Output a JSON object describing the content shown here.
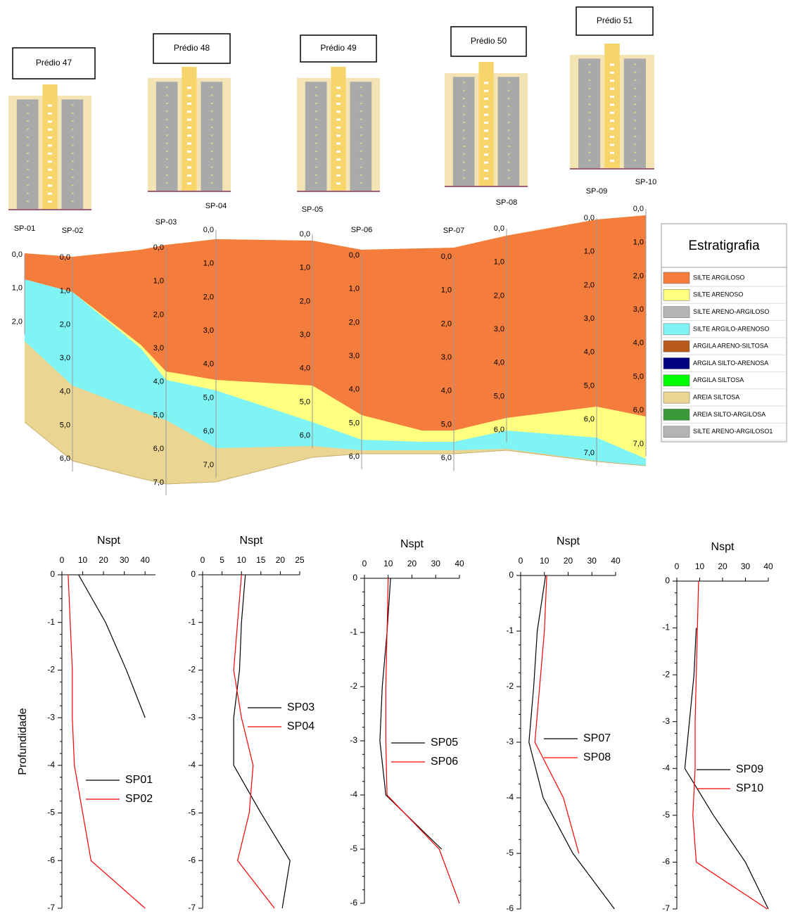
{
  "section": {
    "buildings": [
      "Prédio 47",
      "Prédio 48",
      "Prédio 49",
      "Prédio 50",
      "Prédio 51"
    ],
    "boreholes": [
      {
        "name": "SP-01",
        "depths": [
          "0,0",
          "1,0",
          "2,0"
        ]
      },
      {
        "name": "SP-02",
        "depths": [
          "0,0",
          "1,0",
          "2,0",
          "3,0",
          "4,0",
          "5,0",
          "6,0"
        ]
      },
      {
        "name": "SP-03",
        "depths": [
          "0,0",
          "1,0",
          "2,0",
          "3,0",
          "4,0",
          "5,0",
          "6,0",
          "7,0"
        ]
      },
      {
        "name": "SP-04",
        "depths": [
          "0,0",
          "1,0",
          "2,0",
          "3,0",
          "4,0",
          "5,0",
          "6,0",
          "7,0"
        ]
      },
      {
        "name": "SP-05",
        "depths": [
          "0,0",
          "1,0",
          "2,0",
          "3,0",
          "4,0",
          "5,0",
          "6,0"
        ]
      },
      {
        "name": "SP-06",
        "depths": [
          "0,0",
          "1,0",
          "2,0",
          "3,0",
          "4,0",
          "5,0",
          "6,0"
        ]
      },
      {
        "name": "SP-07",
        "depths": [
          "0,0",
          "1,0",
          "2,0",
          "3,0",
          "4,0",
          "5,0",
          "6,0"
        ]
      },
      {
        "name": "SP-08",
        "depths": [
          "0,0",
          "1,0",
          "2,0",
          "3,0",
          "4,0",
          "5,0",
          "6,0"
        ]
      },
      {
        "name": "SP-09",
        "depths": [
          "0,0",
          "1,0",
          "2,0",
          "3,0",
          "4,0",
          "5,0",
          "6,0",
          "7,0"
        ]
      },
      {
        "name": "SP-10",
        "depths": [
          "0,0",
          "1,0",
          "2,0",
          "3,0",
          "4,0",
          "5,0",
          "6,0",
          "7,0"
        ]
      }
    ],
    "legend": {
      "title": "Estratigrafia",
      "items": [
        {
          "label": "SILTE ARGILOSO",
          "color": "#f47c3c"
        },
        {
          "label": "SILTE ARENOSO",
          "color": "#ffff80"
        },
        {
          "label": "SILTE ARENO-ARGILOSO",
          "color": "#b4b4b4"
        },
        {
          "label": "SILTE ARGILO-ARENOSO",
          "color": "#80f4f4"
        },
        {
          "label": "ARGILA ARENO-SILTOSA",
          "color": "#b85a1a"
        },
        {
          "label": "ARGILA SILTO-ARENOSA",
          "color": "#000080"
        },
        {
          "label": "ARGILA SILTOSA",
          "color": "#00ff00"
        },
        {
          "label": "AREIA SILTOSA",
          "color": "#ead592"
        },
        {
          "label": "AREIA SILTO-ARGILOSA",
          "color": "#3a9a3a"
        },
        {
          "label": "SILTE ARENO-ARGILOSO1",
          "color": "#b4b4b4"
        }
      ]
    }
  },
  "chart_data": [
    {
      "type": "line",
      "title": "Nspt",
      "ylabel": "Profundidade",
      "xlim": [
        0,
        45
      ],
      "xticks": [
        0,
        10,
        20,
        30,
        40
      ],
      "ylim": [
        -7,
        0
      ],
      "yticks": [
        0,
        -1,
        -2,
        -3,
        -4,
        -5,
        -6,
        -7
      ],
      "series": [
        {
          "name": "SP01",
          "color": "#000000",
          "x": [
            8,
            21,
            31,
            40
          ],
          "values": [
            0,
            -1,
            -2,
            -3
          ]
        },
        {
          "name": "SP02",
          "color": "#ff0000",
          "x": [
            3,
            4,
            5,
            5,
            6,
            10,
            14,
            40
          ],
          "values": [
            0,
            -1,
            -2,
            -3,
            -4,
            -5,
            -6,
            -7
          ]
        }
      ]
    },
    {
      "type": "line",
      "title": "Nspt",
      "xlim": [
        0,
        25
      ],
      "xticks": [
        0,
        5,
        10,
        15,
        20,
        25
      ],
      "ylim": [
        -7,
        0
      ],
      "yticks": [
        0,
        -1,
        -2,
        -3,
        -4,
        -5,
        -6,
        -7
      ],
      "series": [
        {
          "name": "SP03",
          "color": "#000000",
          "x": [
            11,
            10,
            9.5,
            8,
            8,
            15,
            22.5,
            20.5
          ],
          "values": [
            0,
            -1,
            -2,
            -3,
            -4,
            -5,
            -6,
            -7
          ]
        },
        {
          "name": "SP04",
          "color": "#ff0000",
          "x": [
            10,
            9,
            8,
            10,
            13,
            12,
            9,
            18.5
          ],
          "values": [
            0,
            -1,
            -2,
            -3,
            -4,
            -5,
            -6,
            -7
          ]
        }
      ]
    },
    {
      "type": "line",
      "title": "Nspt",
      "xlim": [
        0,
        40
      ],
      "xticks": [
        0,
        10,
        20,
        30,
        40
      ],
      "ylim": [
        -6,
        0
      ],
      "yticks": [
        0,
        -1,
        -2,
        -3,
        -4,
        -5,
        -6
      ],
      "series": [
        {
          "name": "SP05",
          "color": "#000000",
          "x": [
            11,
            9.5,
            7.5,
            6.5,
            9,
            32.5
          ],
          "values": [
            0,
            -1,
            -2,
            -3,
            -4,
            -5
          ]
        },
        {
          "name": "SP06",
          "color": "#ff0000",
          "x": [
            10,
            9.5,
            9,
            9,
            9.5,
            31.5,
            40
          ],
          "values": [
            0,
            -1,
            -2,
            -3,
            -4,
            -5,
            -6
          ]
        }
      ]
    },
    {
      "type": "line",
      "title": "Nspt",
      "xlim": [
        0,
        40
      ],
      "xticks": [
        0,
        10,
        20,
        30,
        40
      ],
      "ylim": [
        -6,
        0
      ],
      "yticks": [
        0,
        -1,
        -2,
        -3,
        -4,
        -5,
        -6
      ],
      "series": [
        {
          "name": "SP07",
          "color": "#000000",
          "x": [
            10.5,
            7,
            5.5,
            3.5,
            9.5,
            22,
            39.5
          ],
          "values": [
            0,
            -1,
            -2,
            -3,
            -4,
            -5,
            -6
          ]
        },
        {
          "name": "SP08",
          "color": "#ff0000",
          "x": [
            11,
            10,
            8,
            6,
            18,
            24.5
          ],
          "values": [
            0,
            -1,
            -2,
            -3,
            -4,
            -5
          ]
        }
      ]
    },
    {
      "type": "line",
      "title": "Nspt",
      "xlim": [
        0,
        40
      ],
      "xticks": [
        0,
        10,
        20,
        30,
        40
      ],
      "ylim": [
        -7,
        0
      ],
      "yticks": [
        0,
        -1,
        -2,
        -3,
        -4,
        -5,
        -6,
        -7
      ],
      "series": [
        {
          "name": "SP09",
          "color": "#000000",
          "x": [
            8.5,
            7.5,
            5.5,
            3.5,
            16,
            30,
            40
          ],
          "values": [
            -1,
            -2,
            -3,
            -4,
            -5,
            -6,
            -7
          ]
        },
        {
          "name": "SP10",
          "color": "#ff0000",
          "x": [
            9.5,
            9,
            8.5,
            8,
            8,
            7,
            8.5,
            39.5
          ],
          "values": [
            0,
            -1,
            -2,
            -3,
            -4,
            -5,
            -6,
            -7
          ]
        }
      ]
    }
  ]
}
